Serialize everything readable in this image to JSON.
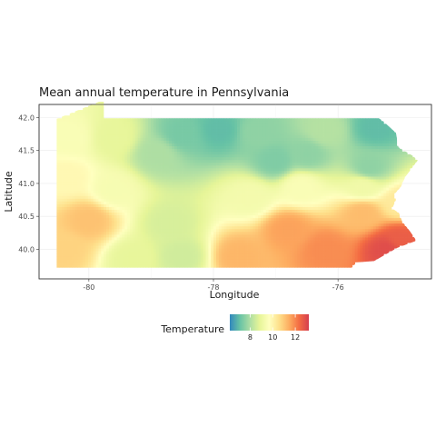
{
  "chart_data": {
    "type": "heatmap",
    "title": "Mean annual temperature in Pennsylvania",
    "xlabel": "Longitude",
    "ylabel": "Latitude",
    "x_ticks": [
      -80,
      -78,
      -76
    ],
    "y_ticks": [
      40.0,
      40.5,
      41.0,
      41.5,
      42.0
    ],
    "x_tick_labels": [
      "-80",
      "-78",
      "-76"
    ],
    "y_tick_labels": [
      "40.0",
      "40.5",
      "41.0",
      "41.5",
      "42.0"
    ],
    "xlim": [
      -80.8,
      -74.5
    ],
    "ylim": [
      39.55,
      42.2
    ],
    "grid": true,
    "colorbar": {
      "title": "Temperature",
      "range": [
        6.2,
        13.2
      ],
      "ticks": [
        8,
        10,
        12
      ],
      "tick_labels": [
        "8",
        "10",
        "12"
      ],
      "palette": "Spectral (reversed)",
      "colors": [
        "#3288bd",
        "#66c2a5",
        "#abdda4",
        "#e6f598",
        "#ffffbf",
        "#fee08b",
        "#fdae61",
        "#f46d43",
        "#d53e4f"
      ],
      "placement": "bottom"
    },
    "state_outline": [
      [
        -80.52,
        39.72
      ],
      [
        -75.78,
        39.72
      ],
      [
        -75.7,
        39.8
      ],
      [
        -75.42,
        39.82
      ],
      [
        -75.05,
        40.02
      ],
      [
        -74.74,
        40.13
      ],
      [
        -74.85,
        40.28
      ],
      [
        -74.97,
        40.42
      ],
      [
        -75.02,
        40.55
      ],
      [
        -75.13,
        40.62
      ],
      [
        -75.07,
        40.75
      ],
      [
        -75.09,
        40.84
      ],
      [
        -74.99,
        40.95
      ],
      [
        -74.92,
        41.1
      ],
      [
        -74.72,
        41.35
      ],
      [
        -74.8,
        41.42
      ],
      [
        -75.03,
        41.55
      ],
      [
        -75.07,
        41.77
      ],
      [
        -75.28,
        41.95
      ],
      [
        -75.36,
        42.0
      ],
      [
        -79.76,
        42.0
      ],
      [
        -79.76,
        42.27
      ],
      [
        -80.52,
        41.98
      ]
    ],
    "temperature_zones": [
      {
        "lon": -77.9,
        "lat": 41.82,
        "temp": 7.0
      },
      {
        "lon": -78.5,
        "lat": 41.75,
        "temp": 7.3
      },
      {
        "lon": -77.3,
        "lat": 41.78,
        "temp": 7.6
      },
      {
        "lon": -77.0,
        "lat": 41.35,
        "temp": 7.4
      },
      {
        "lon": -76.5,
        "lat": 41.45,
        "temp": 7.6
      },
      {
        "lon": -75.4,
        "lat": 41.85,
        "temp": 7.0
      },
      {
        "lon": -75.5,
        "lat": 41.25,
        "temp": 7.6
      },
      {
        "lon": -76.2,
        "lat": 41.8,
        "temp": 8.1
      },
      {
        "lon": -78.9,
        "lat": 41.45,
        "temp": 8.0
      },
      {
        "lon": -79.6,
        "lat": 41.7,
        "temp": 8.9
      },
      {
        "lon": -80.3,
        "lat": 41.7,
        "temp": 9.5
      },
      {
        "lon": -80.35,
        "lat": 41.1,
        "temp": 9.9
      },
      {
        "lon": -79.6,
        "lat": 40.9,
        "temp": 9.4
      },
      {
        "lon": -78.7,
        "lat": 40.4,
        "temp": 8.6
      },
      {
        "lon": -78.5,
        "lat": 39.9,
        "temp": 8.5
      },
      {
        "lon": -79.3,
        "lat": 39.85,
        "temp": 8.9
      },
      {
        "lon": -80.0,
        "lat": 40.45,
        "temp": 11.1
      },
      {
        "lon": -80.4,
        "lat": 40.0,
        "temp": 10.8
      },
      {
        "lon": -77.4,
        "lat": 40.8,
        "temp": 9.3
      },
      {
        "lon": -76.6,
        "lat": 40.95,
        "temp": 9.5
      },
      {
        "lon": -76.8,
        "lat": 40.3,
        "temp": 11.6
      },
      {
        "lon": -77.6,
        "lat": 39.9,
        "temp": 11.3
      },
      {
        "lon": -76.2,
        "lat": 40.0,
        "temp": 11.9
      },
      {
        "lon": -75.6,
        "lat": 40.55,
        "temp": 11.2
      },
      {
        "lon": -75.2,
        "lat": 40.0,
        "temp": 12.9
      },
      {
        "lon": -75.0,
        "lat": 40.15,
        "temp": 12.6
      },
      {
        "lon": -75.0,
        "lat": 40.7,
        "temp": 10.3
      },
      {
        "lon": -75.6,
        "lat": 40.95,
        "temp": 9.2
      }
    ]
  }
}
